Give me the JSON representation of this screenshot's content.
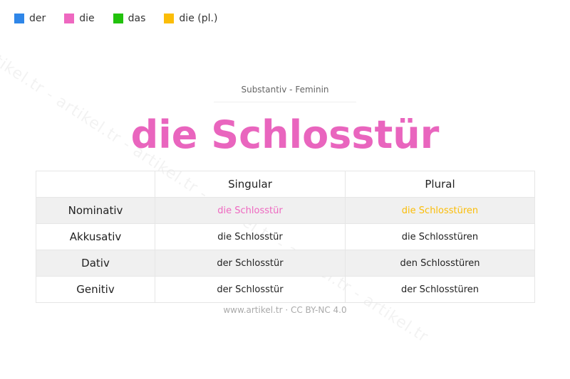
{
  "legend": [
    {
      "label": "der",
      "color": "#2f86e8"
    },
    {
      "label": "die",
      "color": "#ee68c0"
    },
    {
      "label": "das",
      "color": "#22c20c"
    },
    {
      "label": "die (pl.)",
      "color": "#fbbd08"
    }
  ],
  "watermark": "artikel.tr - artikel.tr - artikel.tr - artikel.tr - artikel.tr - artikel.tr",
  "subtitle": "Substantiv  -  Feminin",
  "title": "die Schlosstür",
  "title_color": "#e965be",
  "table": {
    "headers": [
      "",
      "Singular",
      "Plural"
    ],
    "rows": [
      {
        "case": "Nominativ",
        "singular": "die Schlosstür",
        "plural": "die Schlosstüren",
        "singular_color": "#ee68c0",
        "plural_color": "#fbbd08"
      },
      {
        "case": "Akkusativ",
        "singular": "die Schlosstür",
        "plural": "die Schlosstüren"
      },
      {
        "case": "Dativ",
        "singular": "der Schlosstür",
        "plural": "den Schlosstüren"
      },
      {
        "case": "Genitiv",
        "singular": "der Schlosstür",
        "plural": "der Schlosstüren"
      }
    ]
  },
  "footer": "www.artikel.tr · CC BY-NC 4.0"
}
